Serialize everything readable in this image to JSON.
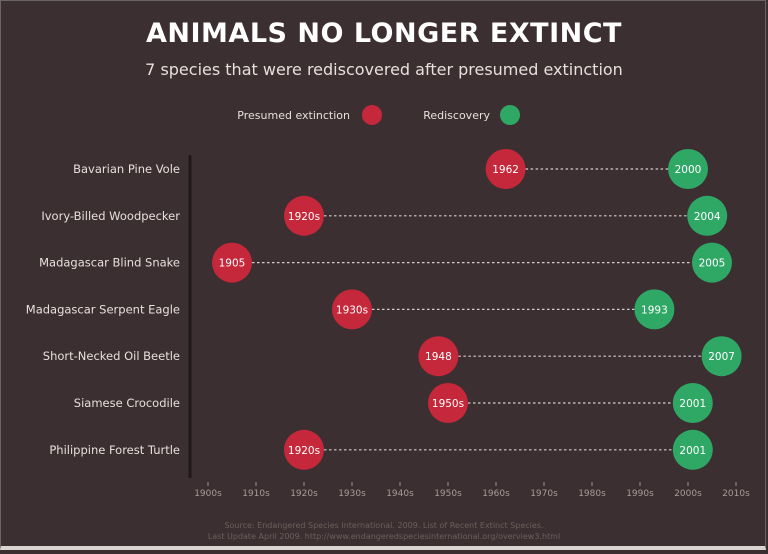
{
  "colors": {
    "background": "#3b2f31",
    "extinction": "#c4283a",
    "rediscovery": "#2fa866"
  },
  "chart_data": {
    "type": "dumbbell",
    "title": "ANIMALS NO LONGER EXTINCT",
    "subtitle": "7 species that were rediscovered after presumed extinction",
    "legend": [
      {
        "name": "Presumed extinction",
        "color": "#c4283a"
      },
      {
        "name": "Rediscovery",
        "color": "#2fa866"
      }
    ],
    "legend_placement": "top",
    "xlim": [
      1900,
      2010
    ],
    "xticks": [
      "1900s",
      "1910s",
      "1920s",
      "1930s",
      "1940s",
      "1950s",
      "1960s",
      "1970s",
      "1980s",
      "1990s",
      "2000s",
      "2010s"
    ],
    "grid": false,
    "rows": [
      {
        "species": "Bavarian Pine Vole",
        "extinction": 1962,
        "extinction_label": "1962",
        "rediscovery": 2000,
        "rediscovery_label": "2000"
      },
      {
        "species": "Ivory-Billed Woodpecker",
        "extinction": 1920,
        "extinction_label": "1920s",
        "rediscovery": 2004,
        "rediscovery_label": "2004"
      },
      {
        "species": "Madagascar Blind Snake",
        "extinction": 1905,
        "extinction_label": "1905",
        "rediscovery": 2005,
        "rediscovery_label": "2005"
      },
      {
        "species": "Madagascar Serpent Eagle",
        "extinction": 1930,
        "extinction_label": "1930s",
        "rediscovery": 1993,
        "rediscovery_label": "1993"
      },
      {
        "species": "Short-Necked Oil Beetle",
        "extinction": 1948,
        "extinction_label": "1948",
        "rediscovery": 2007,
        "rediscovery_label": "2007"
      },
      {
        "species": "Siamese Crocodile",
        "extinction": 1950,
        "extinction_label": "1950s",
        "rediscovery": 2001,
        "rediscovery_label": "2001"
      },
      {
        "species": "Philippine Forest Turtle",
        "extinction": 1920,
        "extinction_label": "1920s",
        "rediscovery": 2001,
        "rediscovery_label": "2001"
      }
    ]
  },
  "footer": {
    "source": "Source: Endangered Species International. 2009. List of Recent Extinct Species.",
    "update": "Last Update April 2009. http://www.endangeredspeciesinternational.org/overview3.html"
  }
}
